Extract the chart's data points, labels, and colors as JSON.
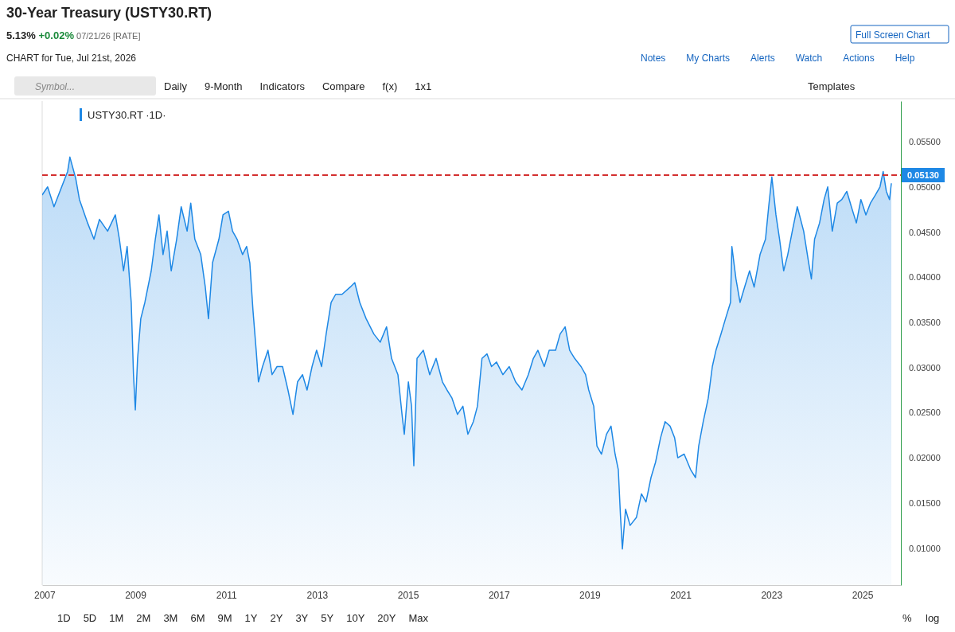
{
  "chart_data": {
    "type": "area",
    "title": "30-Year Treasury (USTY30.RT)",
    "subtitle": "5.13% +0.02% 07/21/26 [RATE]",
    "annotations": [
      "CHART for Tue, Jul 21st, 2026",
      "Full Screen Chart",
      "Notes",
      "My Charts",
      "Alerts",
      "Watch",
      "Actions",
      "Help",
      "Symbol...",
      "Daily",
      "9-Month",
      "Indicators",
      "Compare",
      "f(x)",
      "1x1",
      "Templates",
      "1D",
      "5D",
      "1M",
      "2M",
      "3M",
      "6M",
      "9M",
      "1Y",
      "2Y",
      "3Y",
      "5Y",
      "10Y",
      "20Y",
      "Max",
      "%",
      "log"
    ],
    "legend": "top left",
    "grid": false,
    "xlim": [
      2006.95,
      2025.85
    ],
    "xticks": [
      2007,
      2009,
      2011,
      2013,
      2015,
      2017,
      2019,
      2021,
      2023,
      2025
    ],
    "ylim": [
      0.0059,
      0.0595
    ],
    "yticks": [
      {
        "value": 0.01,
        "label": "0.01000"
      },
      {
        "value": 0.015,
        "label": "0.01500"
      },
      {
        "value": 0.02,
        "label": "0.02000"
      },
      {
        "value": 0.025,
        "label": "0.02500"
      },
      {
        "value": 0.03,
        "label": "0.03000"
      },
      {
        "value": 0.035,
        "label": "0.03500"
      },
      {
        "value": 0.04,
        "label": "0.04000"
      },
      {
        "value": 0.045,
        "label": "0.04500"
      },
      {
        "value": 0.05,
        "label": "0.05000"
      },
      {
        "value": 0.055,
        "label": "0.05500"
      }
    ],
    "ref_lines": [
      {
        "axis": "y",
        "value": 0.0513,
        "label": "0.05130",
        "color": "#d32f2f",
        "line_style": "dashed"
      }
    ],
    "series": [
      {
        "name": "USTY30.RT ·1D·",
        "color": "#1e88e5",
        "x": [
          2006.95,
          2007.07,
          2007.21,
          2007.34,
          2007.51,
          2007.56,
          2007.69,
          2007.77,
          2007.95,
          2008.09,
          2008.21,
          2008.39,
          2008.56,
          2008.65,
          2008.74,
          2008.82,
          2008.91,
          2008.96,
          2009.0,
          2009.05,
          2009.12,
          2009.21,
          2009.35,
          2009.44,
          2009.52,
          2009.61,
          2009.7,
          2009.79,
          2009.91,
          2010.01,
          2010.14,
          2010.22,
          2010.31,
          2010.44,
          2010.54,
          2010.61,
          2010.7,
          2010.84,
          2010.93,
          2011.05,
          2011.14,
          2011.24,
          2011.36,
          2011.45,
          2011.52,
          2011.59,
          2011.66,
          2011.71,
          2011.8,
          2011.92,
          2012.01,
          2012.12,
          2012.24,
          2012.36,
          2012.47,
          2012.57,
          2012.68,
          2012.78,
          2012.89,
          2012.99,
          2013.1,
          2013.2,
          2013.31,
          2013.41,
          2013.55,
          2013.73,
          2013.83,
          2013.94,
          2014.08,
          2014.25,
          2014.39,
          2014.53,
          2014.64,
          2014.78,
          2014.87,
          2014.92,
          2015.01,
          2015.08,
          2015.13,
          2015.2,
          2015.34,
          2015.48,
          2015.62,
          2015.76,
          2015.86,
          2015.97,
          2016.09,
          2016.21,
          2016.32,
          2016.44,
          2016.53,
          2016.63,
          2016.74,
          2016.84,
          2016.95,
          2017.09,
          2017.23,
          2017.37,
          2017.51,
          2017.65,
          2017.76,
          2017.86,
          2018.0,
          2018.11,
          2018.25,
          2018.35,
          2018.46,
          2018.56,
          2018.67,
          2018.81,
          2018.91,
          2018.98,
          2019.09,
          2019.16,
          2019.26,
          2019.37,
          2019.47,
          2019.56,
          2019.63,
          2019.68,
          2019.72,
          2019.79,
          2019.89,
          2020.03,
          2020.14,
          2020.24,
          2020.35,
          2020.45,
          2020.56,
          2020.66,
          2020.77,
          2020.87,
          2020.94,
          2021.08,
          2021.22,
          2021.33,
          2021.4,
          2021.5,
          2021.61,
          2021.7,
          2021.78,
          2021.89,
          2021.99,
          2022.1,
          2022.13,
          2022.22,
          2022.31,
          2022.41,
          2022.52,
          2022.62,
          2022.75,
          2022.87,
          2022.94,
          2023.01,
          2023.1,
          2023.18,
          2023.27,
          2023.36,
          2023.46,
          2023.57,
          2023.71,
          2023.82,
          2023.88,
          2023.95,
          2024.06,
          2024.16,
          2024.24,
          2024.34,
          2024.45,
          2024.55,
          2024.66,
          2024.76,
          2024.87,
          2024.97,
          2025.08,
          2025.18,
          2025.29,
          2025.39,
          2025.46,
          2025.53,
          2025.6,
          2025.64
        ],
        "values": [
          0.0491,
          0.05,
          0.0478,
          0.0495,
          0.0517,
          0.0533,
          0.0509,
          0.0486,
          0.046,
          0.0442,
          0.0464,
          0.0451,
          0.0469,
          0.0442,
          0.0407,
          0.0434,
          0.0372,
          0.0292,
          0.0253,
          0.031,
          0.0354,
          0.0372,
          0.0407,
          0.0442,
          0.0469,
          0.0425,
          0.0451,
          0.0407,
          0.0442,
          0.0478,
          0.0451,
          0.0482,
          0.0442,
          0.0425,
          0.0389,
          0.0354,
          0.0416,
          0.0442,
          0.0469,
          0.0473,
          0.0451,
          0.0442,
          0.0425,
          0.0434,
          0.0416,
          0.0363,
          0.0319,
          0.0284,
          0.0301,
          0.0319,
          0.0292,
          0.0301,
          0.0301,
          0.0275,
          0.0248,
          0.0284,
          0.0292,
          0.0275,
          0.0301,
          0.0319,
          0.0301,
          0.0337,
          0.0372,
          0.0381,
          0.0381,
          0.0389,
          0.0394,
          0.0372,
          0.0354,
          0.0337,
          0.0328,
          0.0345,
          0.031,
          0.0292,
          0.0248,
          0.0226,
          0.0284,
          0.0257,
          0.0191,
          0.031,
          0.0319,
          0.0292,
          0.031,
          0.0284,
          0.0275,
          0.0266,
          0.0248,
          0.0257,
          0.0226,
          0.024,
          0.0257,
          0.031,
          0.0315,
          0.0301,
          0.0306,
          0.0292,
          0.0301,
          0.0284,
          0.0275,
          0.0292,
          0.031,
          0.0319,
          0.0301,
          0.0319,
          0.0319,
          0.0337,
          0.0345,
          0.0319,
          0.031,
          0.0301,
          0.0292,
          0.0275,
          0.0257,
          0.0213,
          0.0204,
          0.0226,
          0.0235,
          0.0204,
          0.0187,
          0.0134,
          0.0099,
          0.0143,
          0.0125,
          0.0134,
          0.016,
          0.0151,
          0.0178,
          0.0195,
          0.0222,
          0.024,
          0.0235,
          0.0222,
          0.02,
          0.0204,
          0.0187,
          0.0178,
          0.0213,
          0.024,
          0.0266,
          0.0301,
          0.0319,
          0.0337,
          0.0354,
          0.0372,
          0.0434,
          0.0398,
          0.0372,
          0.0389,
          0.0407,
          0.0389,
          0.0425,
          0.0442,
          0.0478,
          0.0511,
          0.0469,
          0.0442,
          0.0407,
          0.0425,
          0.0451,
          0.0478,
          0.0451,
          0.0416,
          0.0398,
          0.0442,
          0.046,
          0.0486,
          0.05,
          0.0451,
          0.0482,
          0.0486,
          0.0495,
          0.0478,
          0.046,
          0.0486,
          0.0469,
          0.0482,
          0.0491,
          0.05,
          0.0517,
          0.0495,
          0.0486,
          0.0504
        ]
      }
    ]
  }
}
